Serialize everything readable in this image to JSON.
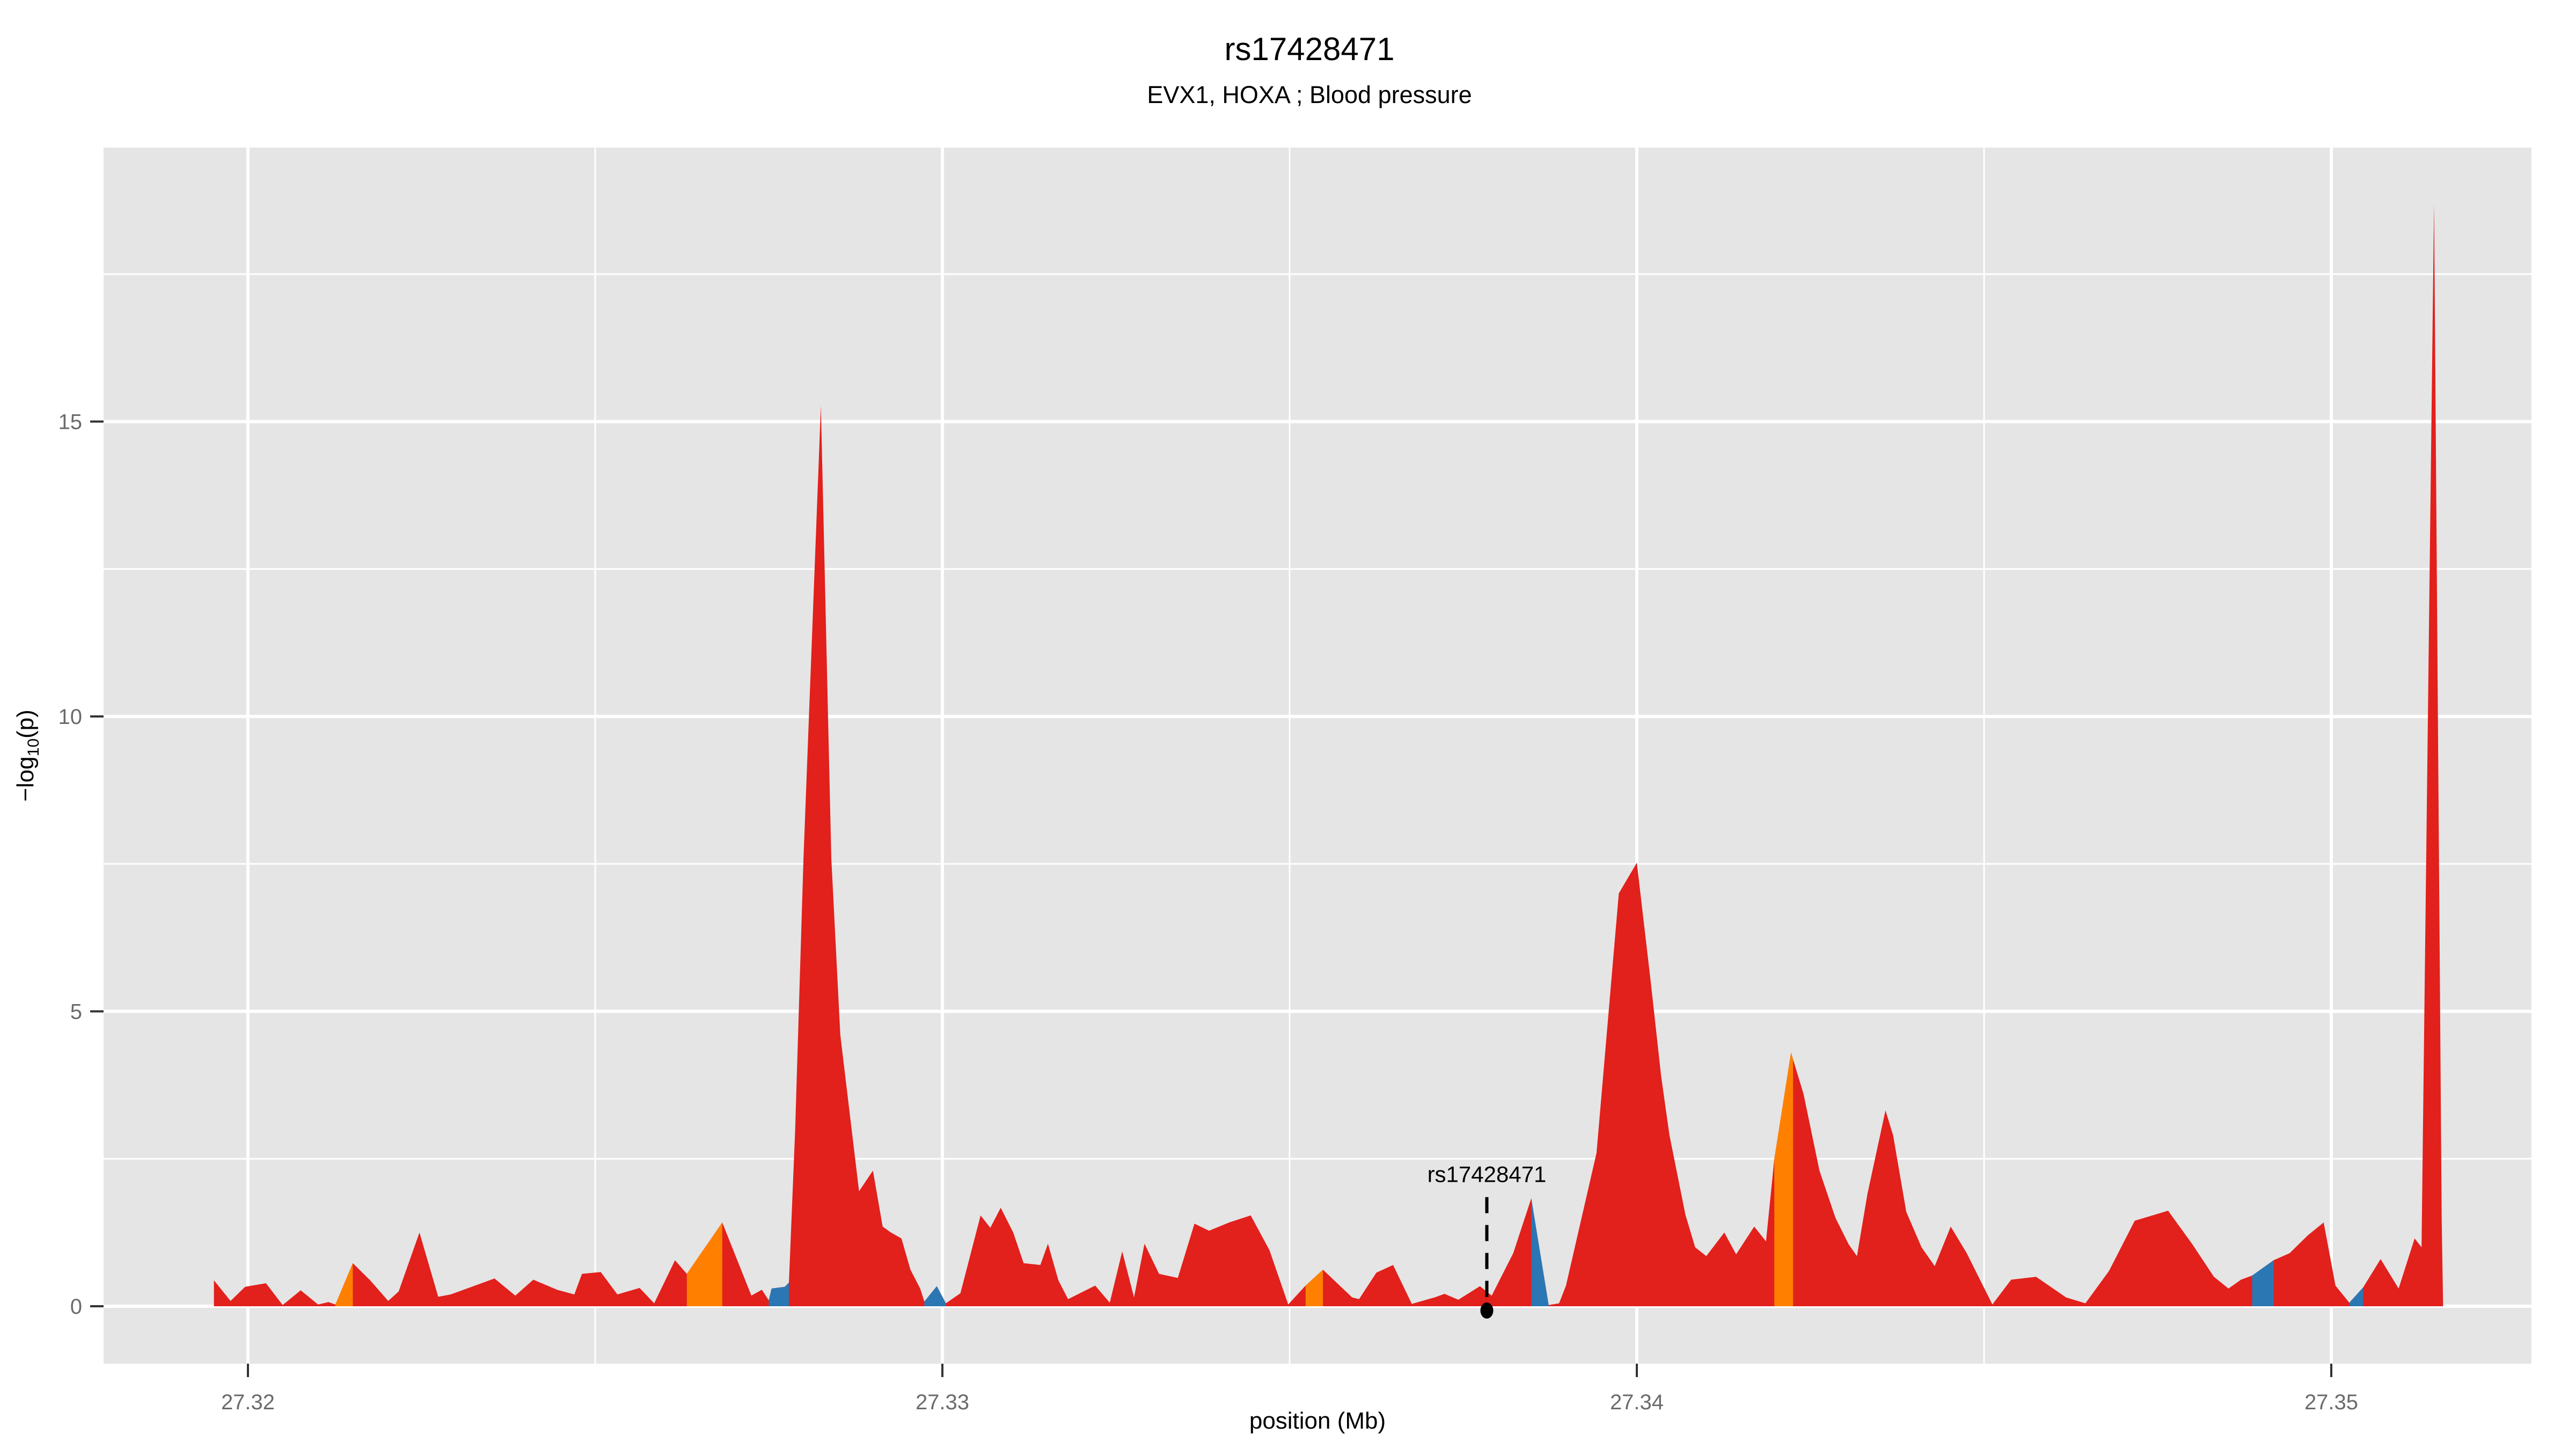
{
  "header": {
    "title": "rs17428471",
    "subtitle": "EVX1, HOXA ; Blood pressure"
  },
  "axes": {
    "x": {
      "title": "position (Mb)",
      "ticks": [
        {
          "value": 27.32,
          "label": "27.32"
        },
        {
          "value": 27.33,
          "label": "27.33"
        },
        {
          "value": 27.34,
          "label": "27.34"
        },
        {
          "value": 27.35,
          "label": "27.35"
        }
      ],
      "minor": [
        27.325,
        27.335,
        27.345
      ],
      "range": [
        27.31792,
        27.35289
      ]
    },
    "y": {
      "title_parts": {
        "main": "−log",
        "sub": "10",
        "end": "(p)"
      },
      "ticks": [
        {
          "value": 0,
          "label": "0"
        },
        {
          "value": 5,
          "label": "5"
        },
        {
          "value": 10,
          "label": "10"
        },
        {
          "value": 15,
          "label": "15"
        }
      ],
      "minor": [
        2.5,
        7.5,
        12.5,
        17.5
      ],
      "range": [
        -0.97,
        19.65
      ]
    }
  },
  "colors": {
    "area_red": "#E2201C",
    "area_orange": "#FF8000",
    "area_blue": "#2B77B4",
    "panel_bg": "#E5E5E5",
    "grid": "#FFFFFF",
    "tick_mark": "#333333",
    "tick_label": "#6B6B6B",
    "annotation": "#000000"
  },
  "chart_data": {
    "type": "area",
    "title": "rs17428471",
    "subtitle": "EVX1, HOXA ; Blood pressure",
    "xlabel": "position (Mb)",
    "ylabel": "-log10(p)",
    "x_domain": [
      27.31792,
      27.35289
    ],
    "y_domain": [
      -0.97,
      19.65
    ],
    "grid": true,
    "legend": "none",
    "points": [
      [
        27.31951,
        0.44
      ],
      [
        27.31975,
        0.09
      ],
      [
        27.31996,
        0.33
      ],
      [
        27.32026,
        0.39
      ],
      [
        27.3205,
        0.02
      ],
      [
        27.32076,
        0.27
      ],
      [
        27.32101,
        0.03
      ],
      [
        27.32116,
        0.07
      ],
      [
        27.32126,
        0.03
      ],
      [
        27.32151,
        0.73
      ],
      [
        27.32176,
        0.44
      ],
      [
        27.32202,
        0.09
      ],
      [
        27.32217,
        0.25
      ],
      [
        27.32247,
        1.25
      ],
      [
        27.32274,
        0.16
      ],
      [
        27.32292,
        0.2
      ],
      [
        27.32355,
        0.47
      ],
      [
        27.32385,
        0.18
      ],
      [
        27.32411,
        0.45
      ],
      [
        27.32445,
        0.28
      ],
      [
        27.3247,
        0.2
      ],
      [
        27.32481,
        0.55
      ],
      [
        27.32508,
        0.58
      ],
      [
        27.32532,
        0.2
      ],
      [
        27.32564,
        0.31
      ],
      [
        27.32585,
        0.05
      ],
      [
        27.32615,
        0.78
      ],
      [
        27.32632,
        0.55
      ],
      [
        27.32683,
        1.42
      ],
      [
        27.32725,
        0.18
      ],
      [
        27.3274,
        0.28
      ],
      [
        27.3275,
        0.1
      ],
      [
        27.32754,
        0.3
      ],
      [
        27.32773,
        0.33
      ],
      [
        27.32779,
        0.4
      ],
      [
        27.32788,
        3.0
      ],
      [
        27.328,
        7.6
      ],
      [
        27.32825,
        15.27
      ],
      [
        27.3284,
        7.6
      ],
      [
        27.32853,
        4.6
      ],
      [
        27.3288,
        1.95
      ],
      [
        27.329,
        2.3
      ],
      [
        27.32914,
        1.35
      ],
      [
        27.32926,
        1.25
      ],
      [
        27.32941,
        1.15
      ],
      [
        27.32954,
        0.62
      ],
      [
        27.32968,
        0.3
      ],
      [
        27.32974,
        0.08
      ],
      [
        27.32992,
        0.34
      ],
      [
        27.33005,
        0.05
      ],
      [
        27.33026,
        0.22
      ],
      [
        27.33055,
        1.54
      ],
      [
        27.33069,
        1.33
      ],
      [
        27.33084,
        1.67
      ],
      [
        27.33102,
        1.25
      ],
      [
        27.33117,
        0.73
      ],
      [
        27.33141,
        0.7
      ],
      [
        27.33152,
        1.06
      ],
      [
        27.33167,
        0.44
      ],
      [
        27.33181,
        0.12
      ],
      [
        27.3322,
        0.35
      ],
      [
        27.33241,
        0.06
      ],
      [
        27.33259,
        0.93
      ],
      [
        27.33276,
        0.15
      ],
      [
        27.33291,
        1.06
      ],
      [
        27.33312,
        0.55
      ],
      [
        27.33339,
        0.48
      ],
      [
        27.33363,
        1.4
      ],
      [
        27.33384,
        1.28
      ],
      [
        27.33413,
        1.42
      ],
      [
        27.33444,
        1.54
      ],
      [
        27.33471,
        0.95
      ],
      [
        27.33498,
        0.03
      ],
      [
        27.33523,
        0.35
      ],
      [
        27.33548,
        0.62
      ],
      [
        27.3359,
        0.15
      ],
      [
        27.336,
        0.12
      ],
      [
        27.33625,
        0.57
      ],
      [
        27.33649,
        0.7
      ],
      [
        27.33676,
        0.04
      ],
      [
        27.33709,
        0.15
      ],
      [
        27.33723,
        0.21
      ],
      [
        27.33743,
        0.11
      ],
      [
        27.33774,
        0.34
      ],
      [
        27.33791,
        0.18
      ],
      [
        27.33822,
        0.9
      ],
      [
        27.33848,
        1.83
      ],
      [
        27.33873,
        0.02
      ],
      [
        27.33888,
        0.05
      ],
      [
        27.33898,
        0.35
      ],
      [
        27.33942,
        2.6
      ],
      [
        27.33974,
        7.0
      ],
      [
        27.34,
        7.52
      ],
      [
        27.3402,
        5.5
      ],
      [
        27.34035,
        3.9
      ],
      [
        27.34047,
        2.9
      ],
      [
        27.3407,
        1.55
      ],
      [
        27.34084,
        1.0
      ],
      [
        27.341,
        0.85
      ],
      [
        27.34126,
        1.25
      ],
      [
        27.34143,
        0.88
      ],
      [
        27.34169,
        1.35
      ],
      [
        27.34186,
        1.1
      ],
      [
        27.34198,
        2.5
      ],
      [
        27.34222,
        4.3
      ],
      [
        27.3424,
        3.6
      ],
      [
        27.34263,
        2.3
      ],
      [
        27.34286,
        1.5
      ],
      [
        27.34305,
        1.05
      ],
      [
        27.34317,
        0.85
      ],
      [
        27.34332,
        1.9
      ],
      [
        27.34358,
        3.32
      ],
      [
        27.34369,
        2.9
      ],
      [
        27.34388,
        1.6
      ],
      [
        27.3441,
        1.0
      ],
      [
        27.34429,
        0.68
      ],
      [
        27.34452,
        1.35
      ],
      [
        27.34475,
        0.9
      ],
      [
        27.34512,
        0.03
      ],
      [
        27.34539,
        0.45
      ],
      [
        27.34575,
        0.5
      ],
      [
        27.34618,
        0.15
      ],
      [
        27.34646,
        0.05
      ],
      [
        27.3468,
        0.6
      ],
      [
        27.34717,
        1.45
      ],
      [
        27.34765,
        1.62
      ],
      [
        27.348,
        1.05
      ],
      [
        27.34831,
        0.5
      ],
      [
        27.34852,
        0.3
      ],
      [
        27.3487,
        0.45
      ],
      [
        27.34886,
        0.52
      ],
      [
        27.34917,
        0.78
      ],
      [
        27.3494,
        0.9
      ],
      [
        27.34966,
        1.2
      ],
      [
        27.34989,
        1.42
      ],
      [
        27.35006,
        0.35
      ],
      [
        27.35026,
        0.06
      ],
      [
        27.35046,
        0.32
      ],
      [
        27.35071,
        0.8
      ],
      [
        27.35097,
        0.3
      ],
      [
        27.3512,
        1.15
      ],
      [
        27.3513,
        1.0
      ],
      [
        27.35148,
        18.7
      ],
      [
        27.35159,
        1.5
      ],
      [
        27.35161,
        0.03
      ]
    ],
    "colored_segments": [
      {
        "color": "orange",
        "from": 27.32126,
        "to": 27.32151
      },
      {
        "color": "orange",
        "from": 27.32632,
        "to": 27.32683
      },
      {
        "color": "blue",
        "from": 27.3275,
        "to": 27.32779
      },
      {
        "color": "blue",
        "from": 27.32974,
        "to": 27.33005
      },
      {
        "color": "orange",
        "from": 27.33523,
        "to": 27.33548
      },
      {
        "color": "blue",
        "from": 27.33848,
        "to": 27.33873
      },
      {
        "color": "orange",
        "from": 27.34198,
        "to": 27.34225
      },
      {
        "color": "blue",
        "from": 27.34886,
        "to": 27.34917
      },
      {
        "color": "blue",
        "from": 27.35026,
        "to": 27.35046
      }
    ],
    "annotation": {
      "label": "rs17428471",
      "x": 27.33784,
      "point_y": 0,
      "line_top_y": 1.85
    }
  }
}
